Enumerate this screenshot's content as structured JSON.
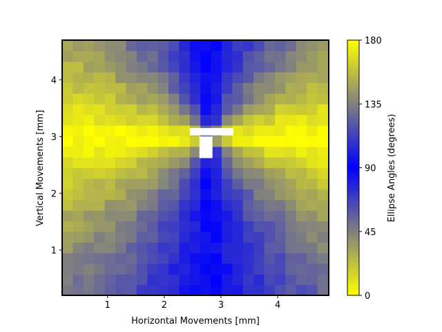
{
  "chart_data": {
    "type": "heatmap",
    "title": "",
    "xlabel": "Horizontal Movements [mm]",
    "ylabel": "Vertical Movements [mm]",
    "xlim": [
      0.2,
      4.9
    ],
    "ylim": [
      0.2,
      4.7
    ],
    "x_ticks": [
      1,
      2,
      3,
      4
    ],
    "y_ticks": [
      1,
      2,
      3,
      4
    ],
    "grid": false,
    "grid_cols": 25,
    "grid_rows": 24,
    "cell_size_mm": 0.1875,
    "colorbar": {
      "label": "Ellipse Angles (degrees)",
      "min": 0,
      "max": 180,
      "ticks": [
        0,
        45,
        90,
        135,
        180
      ],
      "colormap_stops": [
        {
          "value": 0,
          "color": "#ffff00"
        },
        {
          "value": 45,
          "color": "#808080"
        },
        {
          "value": 90,
          "color": "#0000ff"
        },
        {
          "value": 135,
          "color": "#808080"
        },
        {
          "value": 180,
          "color": "#ffff00"
        }
      ]
    },
    "center_mm": [
      2.8,
      3.0
    ],
    "masked_region_mm": [
      [
        2.45,
        3.22,
        3.02,
        3.15
      ],
      [
        2.62,
        2.85,
        2.62,
        3.0
      ]
    ],
    "masked_color": "#ffffff",
    "angle_model": "angle = 90 - atan2(dx, |dy|) on the upper half, mirrored to 90 + atan2(dx, |dy|) on the lower half"
  }
}
